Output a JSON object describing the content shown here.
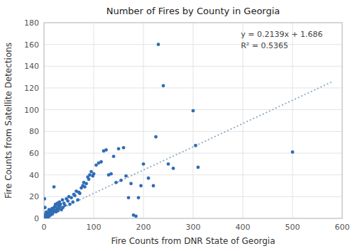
{
  "chart_data": {
    "type": "scatter",
    "title": "Number of Fires by County in Georgia",
    "xlabel": "Fire Counts from DNR State of Georgia",
    "ylabel": "Fire Counts from Satellite Detections",
    "annotation": "y = 0.2139x + 1.686\nR² = 0.5365",
    "xlim": [
      0,
      600
    ],
    "ylim": [
      0,
      180
    ],
    "xticks": [
      0,
      100,
      200,
      300,
      400,
      500,
      600
    ],
    "yticks": [
      0,
      20,
      40,
      60,
      80,
      100,
      120,
      140,
      160,
      180
    ],
    "grid": true,
    "series": [
      {
        "type": "scatter",
        "color": "#2F6DB5",
        "x": [
          1,
          1,
          2,
          2,
          3,
          3,
          4,
          5,
          5,
          6,
          7,
          8,
          8,
          9,
          10,
          10,
          11,
          12,
          13,
          14,
          15,
          16,
          17,
          18,
          19,
          20,
          20,
          21,
          22,
          23,
          24,
          25,
          26,
          27,
          28,
          29,
          30,
          31,
          32,
          33,
          35,
          37,
          38,
          40,
          42,
          45,
          48,
          50,
          52,
          55,
          58,
          60,
          62,
          65,
          68,
          70,
          72,
          75,
          78,
          80,
          82,
          85,
          88,
          90,
          92,
          95,
          98,
          100,
          105,
          110,
          115,
          120,
          125,
          130,
          135,
          140,
          145,
          150,
          155,
          160,
          165,
          170,
          175,
          180,
          185,
          190,
          195,
          200,
          210,
          220,
          225,
          230,
          240,
          250,
          260,
          300,
          305,
          310,
          500
        ],
        "values": [
          1,
          18,
          2,
          10,
          3,
          1,
          5,
          1,
          6,
          2,
          4,
          1,
          3,
          5,
          2,
          8,
          4,
          6,
          3,
          7,
          5,
          9,
          4,
          8,
          6,
          10,
          29,
          7,
          11,
          13,
          6,
          10,
          8,
          14,
          7,
          12,
          9,
          15,
          11,
          13,
          8,
          17,
          10,
          14,
          12,
          18,
          16,
          20,
          13,
          19,
          15,
          22,
          21,
          25,
          17,
          24,
          23,
          28,
          30,
          33,
          29,
          32,
          38,
          36,
          40,
          43,
          39,
          41,
          49,
          51,
          52,
          62,
          63,
          40,
          41,
          57,
          33,
          64,
          35,
          65,
          39,
          19,
          32,
          3,
          2,
          19,
          30,
          50,
          37,
          30,
          75,
          160,
          122,
          50,
          46,
          99,
          67,
          47,
          61
        ]
      },
      {
        "type": "line",
        "color": "#8AAABF",
        "line_style": "dotted",
        "x": [
          0,
          580
        ],
        "values": [
          1.686,
          125.748
        ]
      }
    ]
  }
}
